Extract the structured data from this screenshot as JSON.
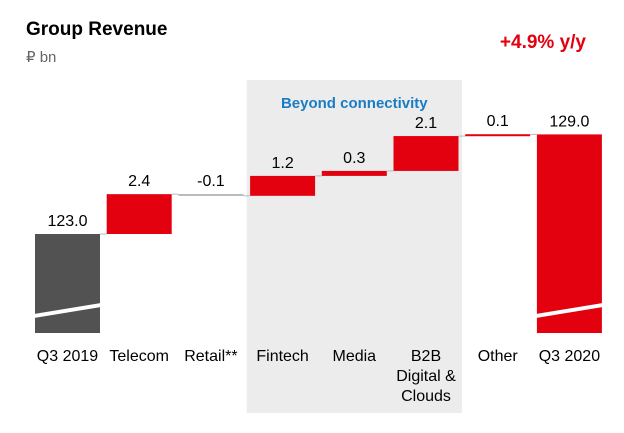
{
  "chart_data": {
    "type": "bar",
    "subtype": "waterfall",
    "title": "Group Revenue",
    "unit": "₽ bn",
    "change_label": "+4.9% y/y",
    "band_label": "Beyond connectivity",
    "band_categories": [
      "Fintech",
      "Media",
      "B2B Digital & Clouds"
    ],
    "axis_break": true,
    "categories": [
      [
        "Q3 2019"
      ],
      [
        "Telecom"
      ],
      [
        "Retail**"
      ],
      [
        "Fintech"
      ],
      [
        "Media"
      ],
      [
        "B2B",
        "Digital &",
        "Clouds"
      ],
      [
        "Other"
      ],
      [
        "Q3 2020"
      ]
    ],
    "values": [
      123.0,
      2.4,
      -0.1,
      1.2,
      0.3,
      2.1,
      0.1,
      129.0
    ],
    "value_labels": [
      "123.0",
      "2.4",
      "-0.1",
      "1.2",
      "0.3",
      "2.1",
      "0.1",
      "129.0"
    ],
    "kinds": [
      "total",
      "delta",
      "delta",
      "delta",
      "delta",
      "delta",
      "delta",
      "total"
    ]
  },
  "colors": {
    "increase": "#e3000f",
    "decrease": "#e3000f",
    "start_total": "#525252",
    "end_total": "#e3000f",
    "band": "#ececec",
    "connector": "#bbbbbb"
  }
}
